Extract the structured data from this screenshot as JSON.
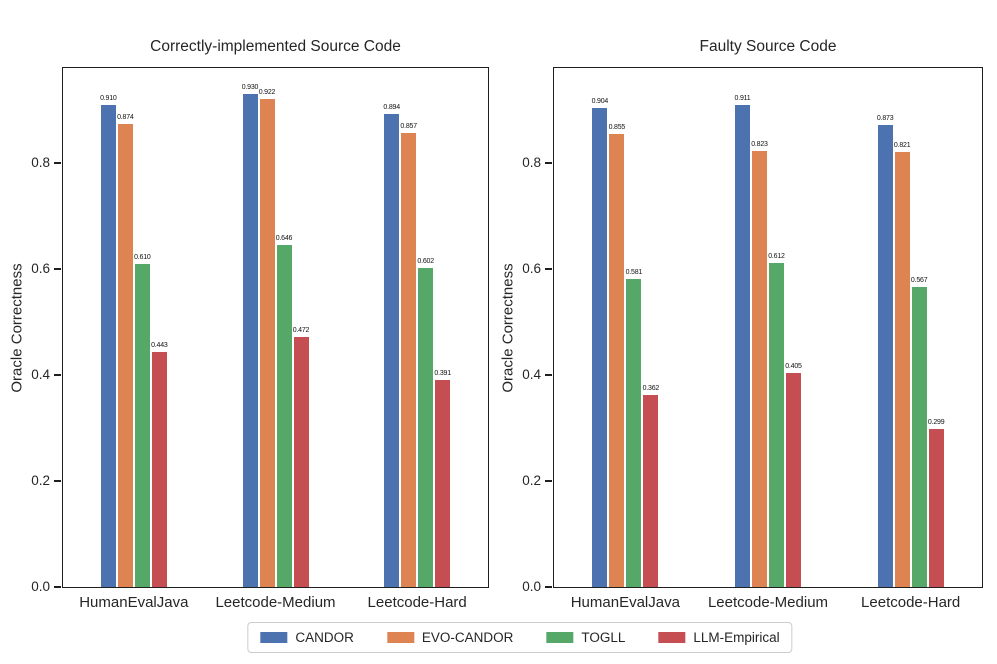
{
  "chart_data": [
    {
      "type": "bar",
      "title": "Correctly-implemented Source Code",
      "xlabel": "",
      "ylabel": "Oracle Correctness",
      "categories": [
        "HumanEvalJava",
        "Leetcode-Medium",
        "Leetcode-Hard"
      ],
      "series": [
        {
          "name": "CANDOR",
          "color": "#4C72B0",
          "values": [
            0.91,
            0.93,
            0.894
          ]
        },
        {
          "name": "EVO-CANDOR",
          "color": "#DD8452",
          "values": [
            0.874,
            0.922,
            0.857
          ]
        },
        {
          "name": "TOGLL",
          "color": "#55A868",
          "values": [
            0.61,
            0.646,
            0.602
          ]
        },
        {
          "name": "LLM-Empirical",
          "color": "#C44E52",
          "values": [
            0.443,
            0.472,
            0.391
          ]
        }
      ],
      "yticks": [
        0.0,
        0.2,
        0.4,
        0.6,
        0.8
      ],
      "ylim": [
        0,
        0.98
      ],
      "grid": false,
      "value_label_decimals": 3
    },
    {
      "type": "bar",
      "title": "Faulty Source Code",
      "xlabel": "",
      "ylabel": "Oracle Correctness",
      "categories": [
        "HumanEvalJava",
        "Leetcode-Medium",
        "Leetcode-Hard"
      ],
      "series": [
        {
          "name": "CANDOR",
          "color": "#4C72B0",
          "values": [
            0.904,
            0.911,
            0.873
          ]
        },
        {
          "name": "EVO-CANDOR",
          "color": "#DD8452",
          "values": [
            0.855,
            0.823,
            0.821
          ]
        },
        {
          "name": "TOGLL",
          "color": "#55A868",
          "values": [
            0.581,
            0.612,
            0.567
          ]
        },
        {
          "name": "LLM-Empirical",
          "color": "#C44E52",
          "values": [
            0.362,
            0.405,
            0.299
          ]
        }
      ],
      "yticks": [
        0.0,
        0.2,
        0.4,
        0.6,
        0.8
      ],
      "ylim": [
        0,
        0.98
      ],
      "grid": false,
      "value_label_decimals": 3
    }
  ],
  "legend": {
    "position": "bottom-center",
    "entries": [
      {
        "label": "CANDOR",
        "color": "#4C72B0"
      },
      {
        "label": "EVO-CANDOR",
        "color": "#DD8452"
      },
      {
        "label": "TOGLL",
        "color": "#55A868"
      },
      {
        "label": "LLM-Empirical",
        "color": "#C44E52"
      }
    ]
  }
}
